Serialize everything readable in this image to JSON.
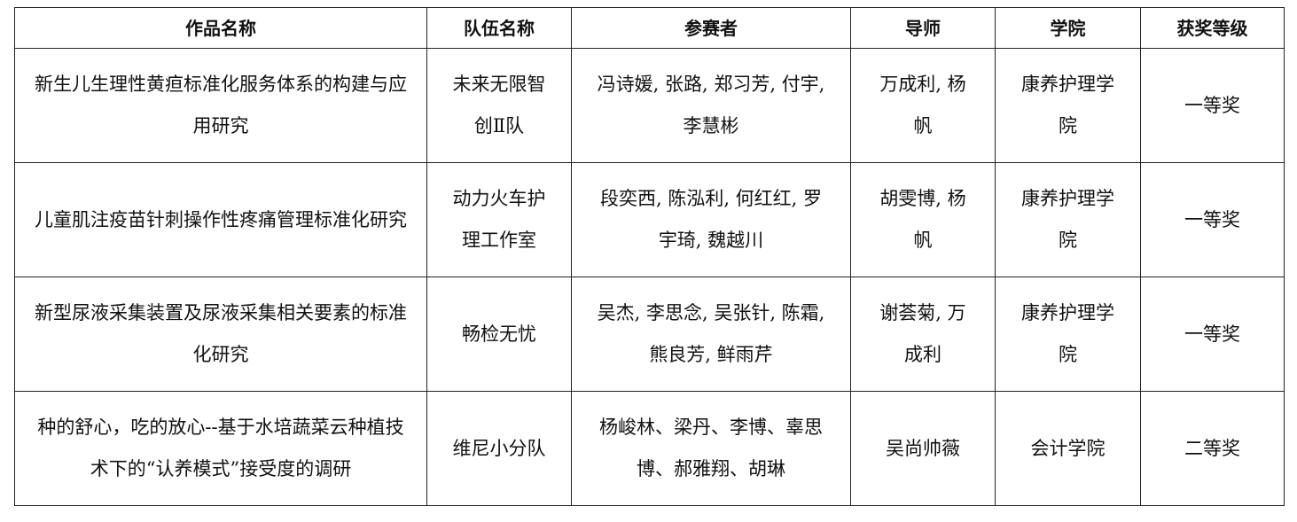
{
  "table": {
    "headers": [
      "作品名称",
      "队伍名称",
      "参赛者",
      "导师",
      "学院",
      "获奖等级"
    ],
    "rows": [
      [
        "新生儿生理性黄疸标准化服务体系的构建与应用研究",
        "未来无限智创Ⅱ队",
        "冯诗媛, 张路, 郑习芳, 付宇, 李慧彬",
        "万成利, 杨帆",
        "康养护理学院",
        "一等奖"
      ],
      [
        "儿童肌注疫苗针刺操作性疼痛管理标准化研究",
        "动力火车护理工作室",
        "段奕西, 陈泓利, 何红红, 罗宇琦, 魏越川",
        "胡雯博, 杨帆",
        "康养护理学院",
        "一等奖"
      ],
      [
        "新型尿液采集装置及尿液采集相关要素的标准化研究",
        "畅检无忧",
        "吴杰, 李思念, 吴张针, 陈霜, 熊良芳, 鲜雨芹",
        "谢荟菊, 万成利",
        "康养护理学院",
        "一等奖"
      ],
      [
        "种的舒心，吃的放心--基于水培蔬菜云种植技术下的“认养模式”接受度的调研",
        "维尼小分队",
        "杨峻林、梁丹、李博、辜思博、郝雅翔、胡琳",
        "吴尚帅薇",
        "会计学院",
        "二等奖"
      ]
    ]
  }
}
